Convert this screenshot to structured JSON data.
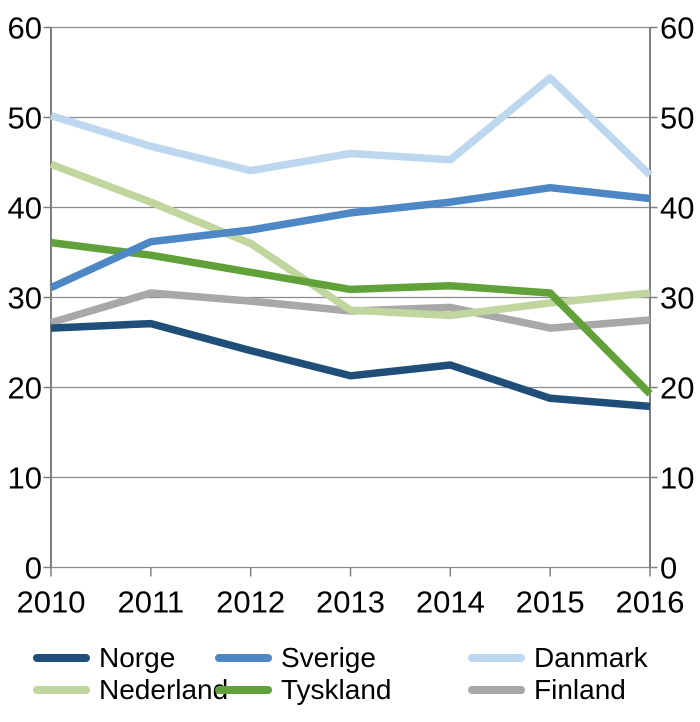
{
  "chart_data": {
    "type": "line",
    "title": "",
    "xlabel": "",
    "ylabel": "",
    "x": [
      2010,
      2011,
      2012,
      2013,
      2014,
      2015,
      2016
    ],
    "series": [
      {
        "name": "Norge",
        "color": "#1F4E79",
        "values": [
          26.6,
          27.1,
          24.1,
          21.3,
          22.5,
          18.8,
          17.9
        ]
      },
      {
        "name": "Sverige",
        "color": "#4E87C5",
        "values": [
          31.1,
          36.2,
          37.5,
          39.4,
          40.6,
          42.2,
          41.0
        ]
      },
      {
        "name": "Danmark",
        "color": "#BDD7EE",
        "values": [
          50.2,
          46.8,
          44.1,
          46.0,
          45.3,
          54.4,
          43.6
        ]
      },
      {
        "name": "Nederland",
        "color": "#C1D59E",
        "values": [
          44.8,
          40.6,
          36.0,
          28.6,
          28.0,
          29.4,
          30.5
        ]
      },
      {
        "name": "Tyskland",
        "color": "#61A139",
        "values": [
          36.1,
          34.7,
          32.8,
          30.9,
          31.3,
          30.5,
          19.3
        ]
      },
      {
        "name": "Finland",
        "color": "#A8A8A8",
        "values": [
          27.2,
          30.5,
          29.6,
          28.5,
          28.9,
          26.6,
          27.5
        ]
      }
    ],
    "draw_order": [
      "Danmark",
      "Finland",
      "Nederland",
      "Tyskland",
      "Sverige",
      "Norge"
    ],
    "ylim": [
      0,
      60
    ],
    "ytick_step": 10,
    "y_axis_sides": "both",
    "grid": true,
    "gridline_color": "#8C8C8C",
    "axis_color": "#7F7F7F",
    "tick_label_color": "#000000",
    "legend_position": "bottom"
  }
}
